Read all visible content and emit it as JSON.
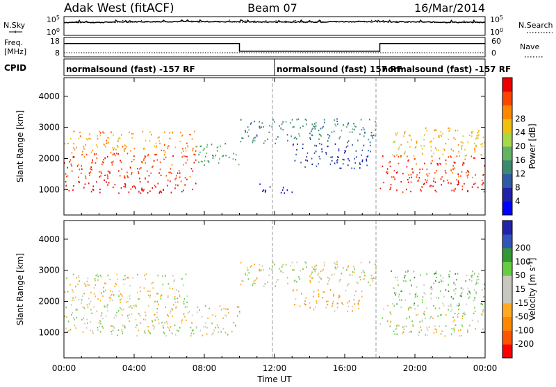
{
  "header": {
    "station": "Adak West (fitACF)",
    "beam": "Beam 07",
    "date": "16/Mar/2014"
  },
  "noise_panel": {
    "left_label": "N.Sky",
    "right_label": "N.Search",
    "left_ticks": [
      "10^5",
      "10^0"
    ],
    "right_ticks": [
      "10^5",
      "10^0"
    ]
  },
  "freq_panel": {
    "label_line1": "Freq.",
    "label_line2": "[MHz]",
    "left_ticks": [
      "18",
      "8"
    ],
    "right_label": "Nave",
    "right_ticks": [
      "60",
      "0"
    ]
  },
  "cpid": {
    "label": "CPID",
    "segments": [
      {
        "start_hour": 0,
        "text": "normalsound (fast) -157 RF"
      },
      {
        "start_hour": 12,
        "text": "normalsound (fast) 157 RF"
      },
      {
        "start_hour": 18,
        "text": "normalsound (fast) -157 RF"
      }
    ]
  },
  "colors": {
    "power_scale": [
      "#0000ff",
      "#2020a8",
      "#2e5aa8",
      "#3a8a70",
      "#62b462",
      "#a6d84a",
      "#f0c010",
      "#ff8800",
      "#ff4400",
      "#ee0000"
    ],
    "velocity_scale": [
      "#ff0000",
      "#ff5500",
      "#ff8800",
      "#ffaa22",
      "#c8c8be",
      "#c8c8be",
      "#66cc44",
      "#339933",
      "#3355bb",
      "#2222aa"
    ]
  },
  "chart_data": [
    {
      "type": "line",
      "title": "N.Sky / N.Search",
      "xlabel": "",
      "ylabel": "",
      "x": [
        0,
        2,
        4,
        6,
        8,
        10,
        12,
        14,
        16,
        18,
        20,
        22,
        24
      ],
      "series": [
        {
          "name": "N.Sky",
          "values": [
            3000,
            3000,
            4500,
            5000,
            5000,
            4200,
            3800,
            3800,
            5000,
            4500,
            3800,
            3200,
            3000
          ]
        },
        {
          "name": "N.Search",
          "values": [
            3000,
            3000,
            3500,
            4200,
            4200,
            3800,
            3500,
            3500,
            4300,
            4000,
            3500,
            3000,
            3000
          ]
        }
      ],
      "ylim": [
        1,
        100000
      ],
      "yscale": "log"
    },
    {
      "type": "line",
      "title": "Freq. / Nave",
      "xlabel": "",
      "ylabel": "Freq. [MHz]",
      "x": [
        0,
        10,
        10,
        18,
        18,
        24
      ],
      "series": [
        {
          "name": "Freq.",
          "values": [
            14.9,
            14.9,
            10.9,
            10.9,
            14.9,
            14.9
          ]
        },
        {
          "name": "Nave",
          "values": [
            14,
            14,
            14,
            14,
            14,
            14
          ]
        }
      ],
      "ylim": [
        8,
        18
      ]
    },
    {
      "type": "heatmap",
      "title": "Power",
      "xlabel": "Time UT",
      "ylabel": "Slant Range [km]",
      "colorbar_label": "Power [dB]",
      "colorbar_ticks": [
        4,
        8,
        12,
        16,
        20,
        24,
        28
      ],
      "zlim": [
        0,
        30
      ],
      "x_ticks": [
        "00:00",
        "04:00",
        "08:00",
        "12:00",
        "16:00",
        "20:00",
        "00:00"
      ],
      "y_ticks": [
        1000,
        2000,
        3000,
        4000
      ],
      "xlim": [
        0,
        24
      ],
      "ylim": [
        180,
        4600
      ],
      "scatter_regions": [
        {
          "t": [
            0,
            7.5
          ],
          "r0": 900,
          "r1": 1300,
          "value": 29
        },
        {
          "t": [
            0,
            7.5
          ],
          "r0": 1300,
          "r1": 2200,
          "value": 26
        },
        {
          "t": [
            0,
            7.5
          ],
          "r0": 2200,
          "r1": 2900,
          "value": 22
        },
        {
          "t": [
            7.5,
            10
          ],
          "r0": 1800,
          "r1": 2500,
          "value": 12
        },
        {
          "t": [
            10,
            17.8
          ],
          "r0": 2500,
          "r1": 3300,
          "value": 10
        },
        {
          "t": [
            13,
            17.5
          ],
          "r0": 1700,
          "r1": 2500,
          "value": 6
        },
        {
          "t": [
            11,
            13
          ],
          "r0": 900,
          "r1": 1200,
          "value": 4
        },
        {
          "t": [
            18,
            24
          ],
          "r0": 900,
          "r1": 1300,
          "value": 29
        },
        {
          "t": [
            18,
            24
          ],
          "r0": 1300,
          "r1": 2100,
          "value": 26
        },
        {
          "t": [
            18.5,
            24
          ],
          "r0": 2100,
          "r1": 3000,
          "value": 20
        }
      ]
    },
    {
      "type": "heatmap",
      "title": "Velocity",
      "xlabel": "Time UT",
      "ylabel": "Slant Range [km]",
      "colorbar_label": "Velocity [m s^-1]",
      "colorbar_ticks": [
        -200,
        -100,
        -50,
        -15,
        15,
        50,
        100,
        200
      ],
      "zlim": [
        -250,
        250
      ],
      "x_ticks": [
        "00:00",
        "04:00",
        "08:00",
        "12:00",
        "16:00",
        "20:00",
        "00:00"
      ],
      "y_ticks": [
        1000,
        2000,
        3000,
        4000
      ],
      "xlim": [
        0,
        24
      ],
      "ylim": [
        180,
        4600
      ],
      "scatter_regions": [
        {
          "t": [
            0,
            10
          ],
          "r0": 900,
          "r1": 1900,
          "value": 0
        },
        {
          "t": [
            0,
            7
          ],
          "r0": 1900,
          "r1": 2900,
          "value": -5
        },
        {
          "t": [
            10,
            17.8
          ],
          "r0": 2500,
          "r1": 3300,
          "value": 0
        },
        {
          "t": [
            13,
            17
          ],
          "r0": 1700,
          "r1": 2400,
          "value": -40
        },
        {
          "t": [
            18,
            24
          ],
          "r0": 900,
          "r1": 1900,
          "value": 0
        },
        {
          "t": [
            18.5,
            24
          ],
          "r0": 1900,
          "r1": 3000,
          "value": 30
        }
      ]
    }
  ],
  "xaxis": {
    "ticks": [
      "00:00",
      "04:00",
      "08:00",
      "12:00",
      "16:00",
      "20:00",
      "00:00"
    ],
    "label": "Time UT"
  }
}
